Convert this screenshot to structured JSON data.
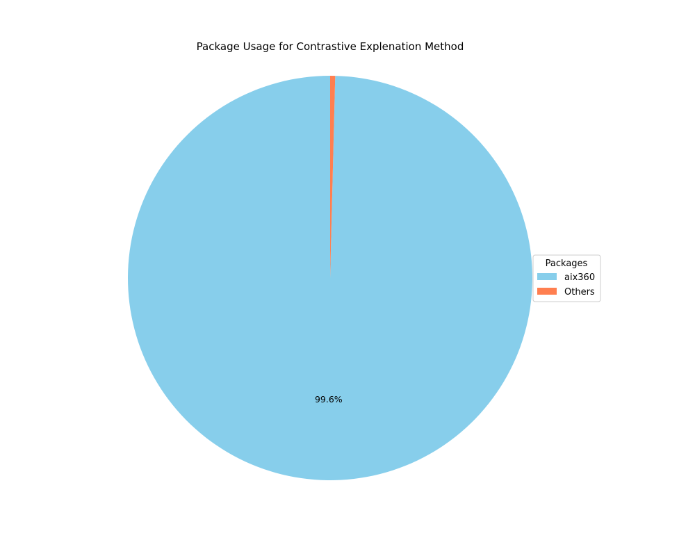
{
  "chart_data": {
    "type": "pie",
    "title": "Package Usage for Contrastive Explenation Method",
    "legend": {
      "title": "Packages",
      "placement": "center-right"
    },
    "slices": [
      {
        "label": "aix360",
        "value": 99.6,
        "color": "#87ceeb",
        "pct_label": "99.6%"
      },
      {
        "label": "Others",
        "value": 0.4,
        "color": "#ff7f50",
        "pct_label": ""
      }
    ],
    "start_angle_deg": 90,
    "direction": "counterclockwise"
  }
}
